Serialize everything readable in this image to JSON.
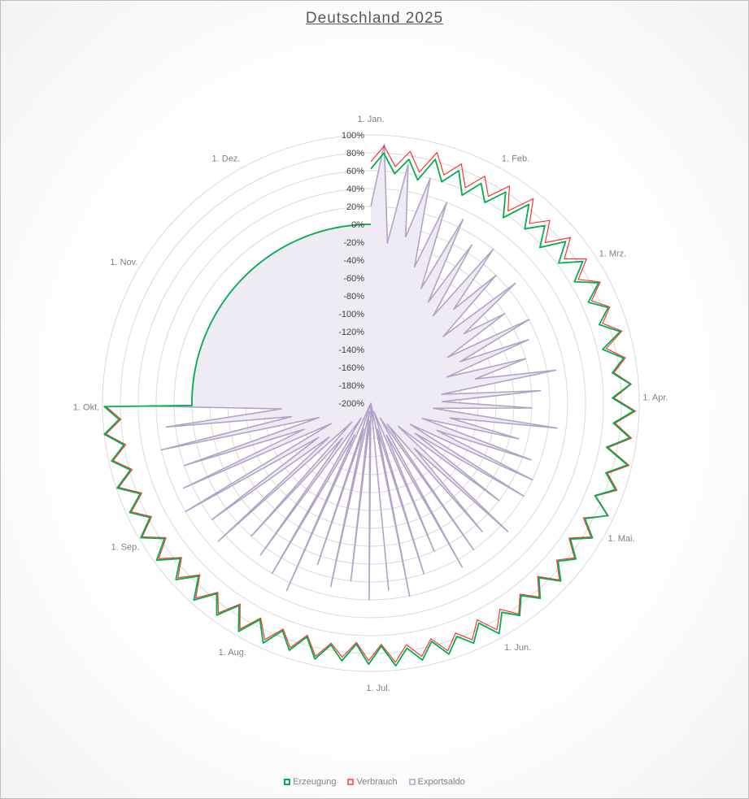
{
  "chart_data": {
    "type": "radar",
    "title": "Deutschland 2025",
    "radial_axis": {
      "min": -200,
      "max": 100,
      "step": 20,
      "unit": "%",
      "tick_labels": [
        "100%",
        "80%",
        "60%",
        "40%",
        "20%",
        "0%",
        "-20%",
        "-40%",
        "-60%",
        "-80%",
        "-100%",
        "-120%",
        "-140%",
        "-160%",
        "-180%",
        "-200%"
      ]
    },
    "angular_labels": [
      {
        "label": "1. Jan.",
        "day": 0
      },
      {
        "label": "1. Feb.",
        "day": 31
      },
      {
        "label": "1. Mrz.",
        "day": 59
      },
      {
        "label": "1. Apr.",
        "day": 90
      },
      {
        "label": "1. Mai.",
        "day": 120
      },
      {
        "label": "1. Jun.",
        "day": 151
      },
      {
        "label": "1. Jul.",
        "day": 181
      },
      {
        "label": "1. Aug.",
        "day": 212
      },
      {
        "label": "1. Sep.",
        "day": 243
      },
      {
        "label": "1. Okt.",
        "day": 273
      },
      {
        "label": "1. Nov.",
        "day": 304
      },
      {
        "label": "1. Dez.",
        "day": 334
      }
    ],
    "days_in_year": 365,
    "data_end_day": 273,
    "value_after_end": 0,
    "legend_position": "bottom",
    "series": [
      {
        "name": "Erzeugung",
        "color": "#00b050",
        "values": [
          62,
          80,
          58,
          76,
          55,
          82,
          60,
          78,
          54,
          75,
          58,
          80,
          55,
          84,
          60,
          78,
          57,
          83,
          62,
          85,
          65,
          88,
          68,
          86,
          70,
          90,
          66,
          87,
          72,
          91,
          70,
          94,
          72,
          92,
          68,
          95,
          74,
          90,
          71,
          93,
          72,
          90,
          70,
          88,
          74,
          91,
          71,
          89,
          73,
          90,
          76,
          95,
          74,
          92,
          78,
          94,
          75,
          93,
          77,
          95,
          72,
          92,
          70,
          90,
          74,
          93,
          71,
          91,
          73,
          94,
          72,
          95,
          70,
          93,
          74,
          96,
          73,
          94,
          75,
          97,
          76,
          98,
          78,
          96,
          77,
          99,
          79,
          97,
          80,
          100,
          82,
          98
        ]
      },
      {
        "name": "Verbrauch",
        "color": "#ff0000",
        "values": [
          70,
          88,
          66,
          85,
          64,
          90,
          68,
          86,
          63,
          84,
          66,
          88,
          64,
          92,
          68,
          86,
          65,
          90,
          70,
          90,
          70,
          90,
          72,
          88,
          74,
          92,
          70,
          89,
          74,
          92,
          72,
          96,
          74,
          94,
          70,
          97,
          76,
          92,
          72,
          94,
          70,
          88,
          68,
          86,
          72,
          89,
          69,
          87,
          71,
          88,
          72,
          90,
          70,
          88,
          74,
          90,
          72,
          89,
          73,
          91,
          70,
          88,
          68,
          86,
          72,
          90,
          69,
          88,
          71,
          90,
          70,
          92,
          68,
          90,
          72,
          93,
          71,
          91,
          73,
          94,
          74,
          96,
          76,
          94,
          75,
          97,
          77,
          95,
          78,
          98,
          80,
          96
        ]
      },
      {
        "name": "Exportsaldo",
        "color": "#b3a2c7",
        "values": [
          20,
          90,
          -20,
          70,
          -10,
          60,
          -40,
          40,
          -60,
          30,
          -70,
          10,
          -80,
          20,
          -60,
          0,
          -90,
          10,
          -70,
          -20,
          -100,
          0,
          -90,
          -10,
          -110,
          -20,
          -80,
          10,
          -120,
          -10,
          -120,
          -20,
          -130,
          10,
          -110,
          -30,
          -140,
          -10,
          -120,
          0,
          -150,
          0,
          -140,
          -20,
          -160,
          10,
          -130,
          -10,
          -170,
          0,
          -180,
          10,
          -160,
          -20,
          -190,
          0,
          -170,
          20,
          -200,
          10,
          -200,
          20,
          -180,
          0,
          -190,
          10,
          -170,
          -10,
          -200,
          30,
          -160,
          20,
          -180,
          10,
          -150,
          0,
          -170,
          30,
          -140,
          20,
          -130,
          40,
          -150,
          30,
          -120,
          20,
          -140,
          40,
          -110,
          30,
          -100,
          50
        ]
      }
    ]
  }
}
